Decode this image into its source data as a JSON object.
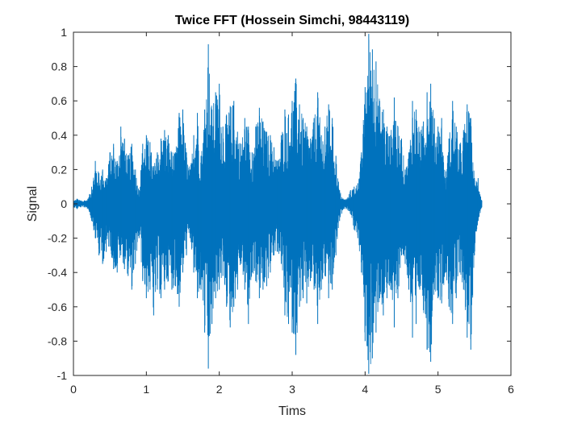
{
  "chart_data": {
    "type": "line",
    "title": "Twice FFT (Hossein Simchi, 98443119)",
    "xlabel": "Tims",
    "ylabel": "Signal",
    "xlim": [
      0,
      6
    ],
    "ylim": [
      -1,
      1
    ],
    "x_ticks": [
      0,
      1,
      2,
      3,
      4,
      5,
      6
    ],
    "x_tick_labels": [
      "0",
      "1",
      "2",
      "3",
      "4",
      "5",
      "6"
    ],
    "y_ticks": [
      1,
      0.8,
      0.6,
      0.4,
      0.2,
      0,
      -0.2,
      -0.4,
      -0.6,
      -0.8,
      -1
    ],
    "y_tick_labels": [
      "1",
      "0.8",
      "0.6",
      "0.4",
      "0.2",
      "0",
      "-0.2",
      "-0.4",
      "-0.6",
      "-0.8",
      "-1"
    ],
    "grid": false,
    "line_color": "#0072bd",
    "series": [
      {
        "x": [
          0.0,
          0.05,
          0.1,
          0.15,
          0.2,
          0.25,
          0.3,
          0.35,
          0.4,
          0.45,
          0.5,
          0.55,
          0.6,
          0.65,
          0.7,
          0.75,
          0.8,
          0.85,
          0.9,
          0.95,
          1.0,
          1.05,
          1.1,
          1.15,
          1.2,
          1.25,
          1.3,
          1.35,
          1.4,
          1.45,
          1.5,
          1.55,
          1.6,
          1.65,
          1.7,
          1.75,
          1.8,
          1.85,
          1.9,
          1.95,
          2.0,
          2.05,
          2.1,
          2.15,
          2.2,
          2.25,
          2.3,
          2.35,
          2.4,
          2.45,
          2.5,
          2.55,
          2.6,
          2.65,
          2.7,
          2.75,
          2.8,
          2.85,
          2.9,
          2.95,
          3.0,
          3.05,
          3.1,
          3.15,
          3.2,
          3.25,
          3.3,
          3.35,
          3.4,
          3.45,
          3.5,
          3.55,
          3.6,
          3.65,
          3.7,
          3.75,
          3.8,
          3.85,
          3.9,
          3.95,
          4.0,
          4.05,
          4.1,
          4.15,
          4.2,
          4.25,
          4.3,
          4.35,
          4.4,
          4.45,
          4.5,
          4.55,
          4.6,
          4.65,
          4.7,
          4.75,
          4.8,
          4.85,
          4.9,
          4.95,
          5.0,
          5.05,
          5.1,
          5.15,
          5.2,
          5.25,
          5.3,
          5.35,
          5.4,
          5.45,
          5.5,
          5.55,
          5.6
        ],
        "upper": [
          0.02,
          0.03,
          0.02,
          0.02,
          0.03,
          0.1,
          0.25,
          0.18,
          0.2,
          0.15,
          0.3,
          0.35,
          0.25,
          0.45,
          0.38,
          0.28,
          0.35,
          0.2,
          0.08,
          0.35,
          0.4,
          0.36,
          0.22,
          0.3,
          0.38,
          0.43,
          0.4,
          0.3,
          0.3,
          0.53,
          0.55,
          0.3,
          0.2,
          0.4,
          0.53,
          0.28,
          0.55,
          0.93,
          0.55,
          0.65,
          0.7,
          0.45,
          0.52,
          0.57,
          0.6,
          0.42,
          0.35,
          0.5,
          0.45,
          0.3,
          0.45,
          0.56,
          0.48,
          0.42,
          0.4,
          0.33,
          0.25,
          0.4,
          0.55,
          0.52,
          0.6,
          0.73,
          0.58,
          0.5,
          0.45,
          0.38,
          0.5,
          0.65,
          0.4,
          0.45,
          0.58,
          0.5,
          0.28,
          0.08,
          0.03,
          0.03,
          0.08,
          0.1,
          0.12,
          0.3,
          0.68,
          0.99,
          0.9,
          0.83,
          0.6,
          0.55,
          0.45,
          0.4,
          0.62,
          0.45,
          0.38,
          0.2,
          0.3,
          0.6,
          0.55,
          0.42,
          0.48,
          0.65,
          0.7,
          0.5,
          0.45,
          0.5,
          0.15,
          0.38,
          0.6,
          0.45,
          0.35,
          0.43,
          0.58,
          0.5,
          0.15,
          0.15,
          0.02
        ],
        "lower": [
          -0.02,
          -0.03,
          -0.02,
          -0.02,
          -0.03,
          -0.1,
          -0.2,
          -0.3,
          -0.35,
          -0.28,
          -0.25,
          -0.38,
          -0.4,
          -0.3,
          -0.38,
          -0.42,
          -0.5,
          -0.35,
          -0.2,
          -0.45,
          -0.55,
          -0.5,
          -0.65,
          -0.5,
          -0.55,
          -0.5,
          -0.45,
          -0.5,
          -0.48,
          -0.6,
          -0.4,
          -0.3,
          -0.2,
          -0.4,
          -0.55,
          -0.5,
          -0.75,
          -0.96,
          -0.7,
          -0.55,
          -0.5,
          -0.42,
          -0.6,
          -0.72,
          -0.6,
          -0.5,
          -0.35,
          -0.5,
          -0.7,
          -0.4,
          -0.45,
          -0.55,
          -0.5,
          -0.48,
          -0.4,
          -0.3,
          -0.28,
          -0.35,
          -0.65,
          -0.7,
          -0.75,
          -0.88,
          -0.6,
          -0.55,
          -0.58,
          -0.45,
          -0.5,
          -0.7,
          -0.5,
          -0.42,
          -0.55,
          -0.5,
          -0.3,
          -0.1,
          -0.03,
          -0.03,
          -0.06,
          -0.15,
          -0.2,
          -0.4,
          -0.8,
          -0.99,
          -0.9,
          -0.75,
          -0.55,
          -0.65,
          -0.55,
          -0.5,
          -0.72,
          -0.55,
          -0.3,
          -0.35,
          -0.5,
          -0.78,
          -0.7,
          -0.5,
          -0.62,
          -0.85,
          -0.92,
          -0.5,
          -0.55,
          -0.58,
          -0.4,
          -0.6,
          -0.7,
          -0.55,
          -0.4,
          -0.5,
          -0.78,
          -0.85,
          -0.3,
          -0.1,
          -0.02
        ]
      }
    ]
  }
}
